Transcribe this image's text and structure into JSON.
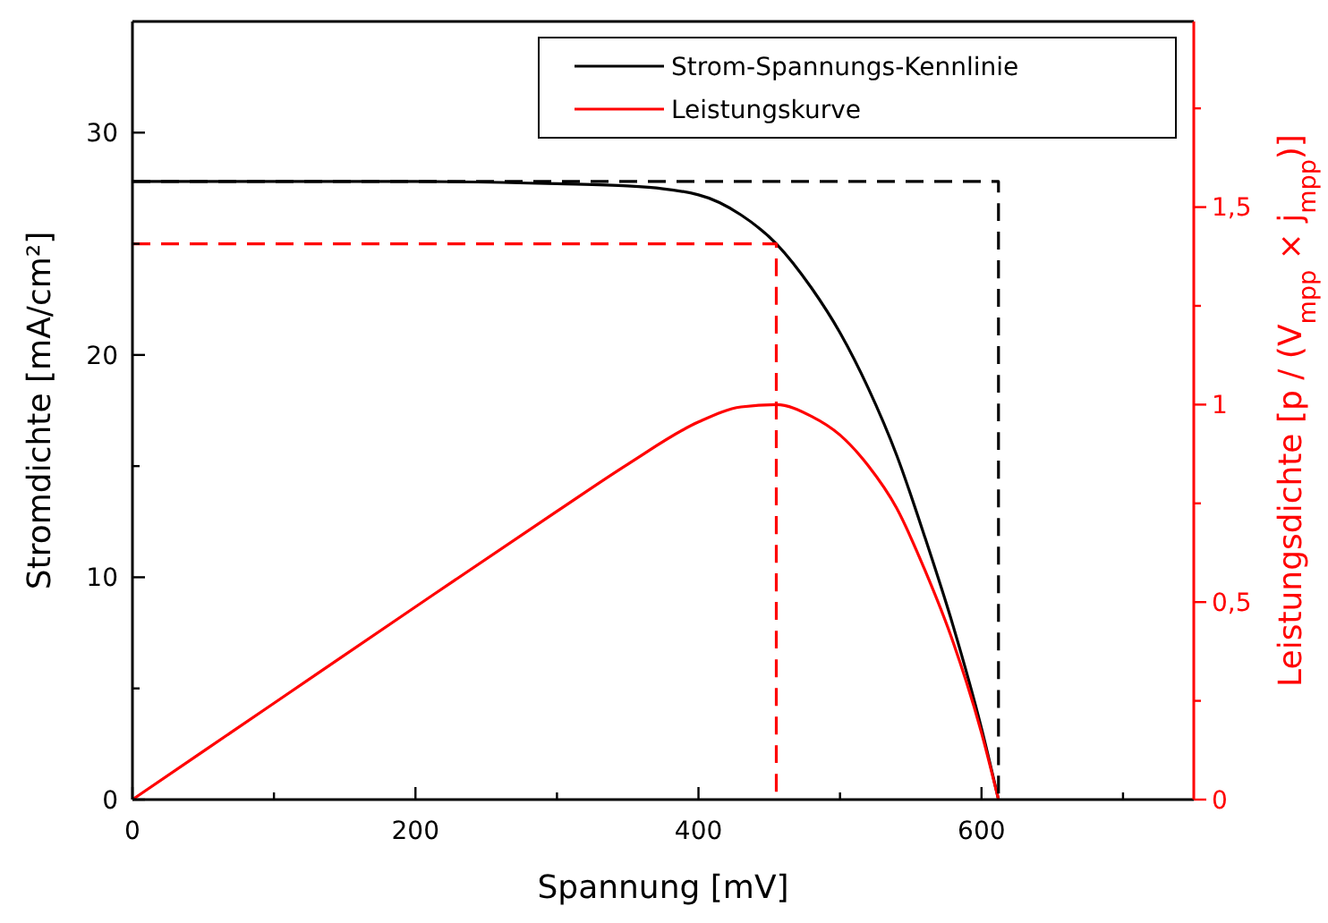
{
  "chart_data": {
    "type": "line",
    "xlabel": "Spannung [mV]",
    "ylabel": "Stromdichte [mA/cm²]",
    "y2label": "Leistungsdichte [p / (V$_{mpp}$ × j$_{mpp}$)]",
    "xlim": [
      0,
      750
    ],
    "xticks": [
      0,
      {
        "value": 100,
        "label": null
      },
      200,
      {
        "value": 300,
        "label": null
      },
      400,
      {
        "value": 500,
        "label": null
      },
      600,
      {
        "value": 700,
        "label": null
      }
    ],
    "ylim": [
      0,
      35
    ],
    "yticks": [
      0,
      {
        "value": 5,
        "label": null
      },
      10,
      {
        "value": 15,
        "label": null
      },
      20,
      {
        "value": 25,
        "label": null
      },
      30
    ],
    "y2lim": [
      0,
      1.97
    ],
    "y2ticks": [
      0,
      {
        "value": 0.25,
        "label": null
      },
      {
        "value": 0.5,
        "label": "0,5"
      },
      {
        "value": 0.75,
        "label": null
      },
      1,
      {
        "value": 1.25,
        "label": null
      },
      {
        "value": 1.5,
        "label": "1,5"
      },
      {
        "value": 1.75,
        "label": null
      }
    ],
    "legend": "top right",
    "grid": false,
    "series": [
      {
        "name": "Strom-Spannungs-Kennlinie",
        "color": "#000000",
        "x": [
          0,
          100,
          200,
          300,
          350,
          400,
          430,
          455,
          480,
          500,
          520,
          540,
          560,
          580,
          600,
          612
        ],
        "values": [
          27.8,
          27.8,
          27.8,
          27.7,
          27.6,
          27.2,
          26.3,
          25.0,
          23.0,
          21.0,
          18.5,
          15.5,
          11.8,
          7.8,
          3.2,
          0
        ]
      },
      {
        "name": "Leistungskurve",
        "color": "#ff0000",
        "axis": "y2",
        "x": [
          0,
          100,
          200,
          300,
          350,
          400,
          430,
          455,
          480,
          500,
          520,
          540,
          560,
          580,
          600,
          612
        ],
        "values": [
          0,
          0.244,
          0.488,
          0.73,
          0.849,
          0.956,
          0.994,
          1.0,
          0.97,
          0.923,
          0.845,
          0.738,
          0.581,
          0.398,
          0.169,
          0
        ]
      },
      {
        "color": "#000000",
        "line_style": "dashed",
        "x": [
          0,
          612,
          612
        ],
        "values": [
          27.8,
          27.8,
          0
        ]
      },
      {
        "color": "#ff0000",
        "line_style": "dashed",
        "x": [
          0,
          455,
          455
        ],
        "values": [
          25,
          25,
          0
        ]
      }
    ]
  }
}
